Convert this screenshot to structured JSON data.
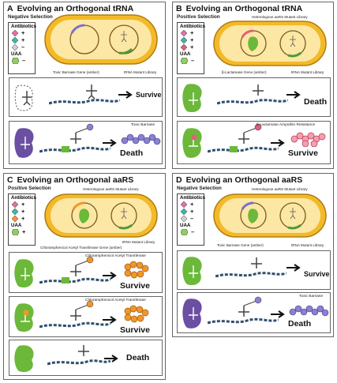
{
  "legend_title": "Antibiotics",
  "uaa_title": "UAA",
  "panels": {
    "A": {
      "letter": "A",
      "title": "Evolving an Orthogonal tRNA",
      "subtitle": "Negative Selection",
      "legend": [
        "+",
        "+",
        "–"
      ],
      "uaa": "–",
      "gene_label": "Toxic Barnase Gene (amber)",
      "library_label": "tRNA Mutant Library",
      "top_label": "",
      "row1": {
        "product": "",
        "outcome": "Survive"
      },
      "row2": {
        "product": "Toxic Barnase",
        "outcome": "Death"
      }
    },
    "B": {
      "letter": "B",
      "title": "Evolving an Orthogonal tRNA",
      "subtitle": "Positive Selection",
      "legend": [
        "+",
        "+",
        "+"
      ],
      "uaa": "–",
      "gene_label": "β-Lactamase Gene (amber)",
      "library_label": "tRNA Mutant Library",
      "top_label": "Heterologous aaRS Mutant Library",
      "row1": {
        "product": "",
        "outcome": "Death"
      },
      "row2": {
        "product": "β-Lactamase Ampicillin Resistance",
        "outcome": "Survive"
      }
    },
    "C": {
      "letter": "C",
      "title": "Evolving an Orthogonal aaRS",
      "subtitle": "Positive Selection",
      "legend": [
        "+",
        "+",
        "+"
      ],
      "uaa": "+",
      "gene_label": "Chloramphenicol Acetyl Transferase Gene (amber)",
      "library_label": "tRNA Mutant Library",
      "top_label": "Heterologous aaRS Mutant Library",
      "row1": {
        "product": "Chloramphenicol Acetyl Transferase",
        "outcome": "Survive"
      },
      "row2": {
        "product": "Chloramphenicol Acetyl Transferase",
        "outcome": "Survive"
      },
      "row3": {
        "outcome": "Death"
      }
    },
    "D": {
      "letter": "D",
      "title": "Evolving an Orthogonal aaRS",
      "subtitle": "Negative Selection",
      "legend": [
        "+",
        "+",
        "–"
      ],
      "uaa": "–",
      "gene_label": "Toxic Barnase Gene (amber)",
      "library_label": "tRNA Mutant Library",
      "top_label": "Heterologous aaRS Mutant Library",
      "row1": {
        "outcome": "Survive"
      },
      "row2": {
        "product": "Toxic Barnase",
        "outcome": "Death"
      }
    }
  },
  "colors": {
    "cell_fill": "#f3b928",
    "cell_border": "#b07d10",
    "inner_fill": "#fde7a4",
    "green": "#6bb83a",
    "purple": "#6a4fa2",
    "barnase": "#8b80d0",
    "lactamase": "#e0607a",
    "cat": "#f0962a",
    "pink": "#e36fa5",
    "teal": "#3bb8a6",
    "gray": "#bdbdbd"
  }
}
